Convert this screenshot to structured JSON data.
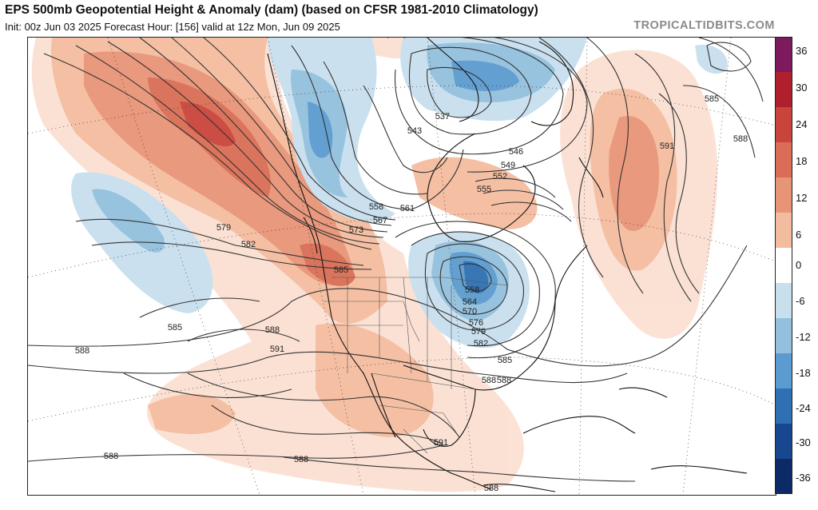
{
  "header": {
    "title": "EPS 500mb Geopotential Height & Anomaly (dam) (based on CFSR 1981-2010 Climatology)",
    "subtitle": "Init: 00z Jun 03 2025   Forecast Hour: [156]   valid at 12z Mon, Jun 09 2025",
    "brand": "TROPICALTIDBITS.COM"
  },
  "colorbar": {
    "labels": [
      "36",
      "30",
      "24",
      "18",
      "12",
      "6",
      "0",
      "-6",
      "-12",
      "-18",
      "-24",
      "-30",
      "-36"
    ],
    "colors": {
      "36": "#7d1a5e",
      "30": "#b01f2c",
      "24": "#c9443a",
      "18": "#da6d55",
      "12": "#e89477",
      "6": "#f4bc9f",
      "0p": "#fbe0d2",
      "0n": "#ffffff",
      "-6": "#c8dfee",
      "-12": "#93c0de",
      "-18": "#5b9bcf",
      "-24": "#2f6fb3",
      "-30": "#17478f",
      "-36": "#0b2a66"
    }
  },
  "contour_labels": {
    "pacific_579": "579",
    "pacific_582": "582",
    "pacific_585": "585",
    "pacific_588": "588",
    "pacific_588b": "588",
    "sw_588": "588",
    "sw_591": "591",
    "bc_573": "573",
    "bc_567": "567",
    "bc_558": "558",
    "bc_561": "561",
    "nw_585": "585",
    "hudson_543": "543",
    "baffin_537": "537",
    "lab_546": "546",
    "lab_549": "549",
    "lab_552": "552",
    "lab_555": "555",
    "gl_558": "558",
    "gl_564": "564",
    "gl_570": "570",
    "gl_576": "576",
    "gl_579": "579",
    "gl_582": "582",
    "gl_585": "585",
    "gl_588": "588",
    "mex_591": "591",
    "mex_588": "588",
    "mex_588b": "588",
    "carib_588": "588",
    "atl_585": "585",
    "atl_588": "588",
    "atl_591": "591"
  }
}
